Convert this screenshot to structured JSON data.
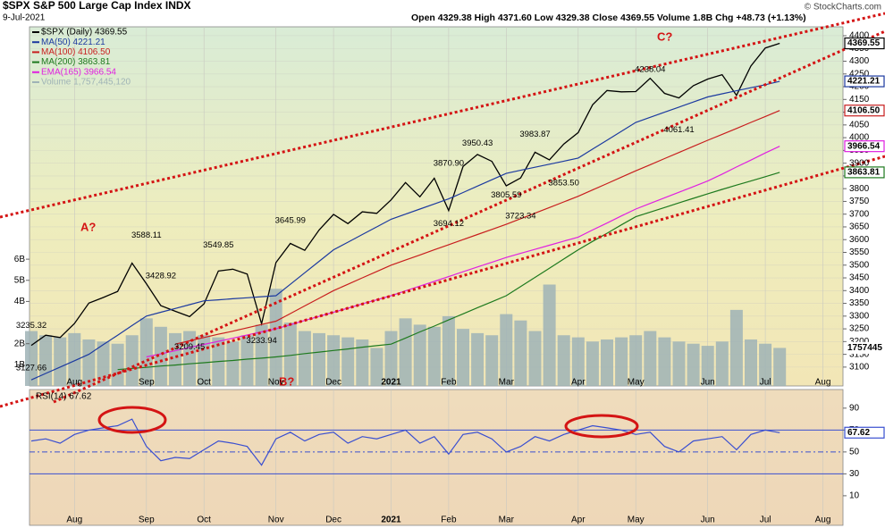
{
  "chart_data": [
    {
      "type": "line",
      "title": "$SPX S&P 500 Large Cap Index INDX",
      "date": "9-Jul-2021",
      "quote": "Open 4329.38 High 4371.60 Low 4329.38 Close 4369.55 Volume 1.8B Chg +48.73 (+1.13%)",
      "credit": "© StockCharts.com",
      "annotations": [
        "A?",
        "B?",
        "C?"
      ],
      "categories": [
        null,
        null,
        null,
        "Aug",
        null,
        null,
        null,
        null,
        "Sep",
        null,
        null,
        null,
        "Oct",
        null,
        null,
        null,
        null,
        "Nov",
        null,
        null,
        null,
        "Dec",
        null,
        null,
        null,
        "2021",
        null,
        null,
        null,
        "Feb",
        null,
        null,
        null,
        "Mar",
        null,
        null,
        null,
        null,
        "Apr",
        null,
        null,
        null,
        "May",
        null,
        null,
        null,
        null,
        "Jun",
        null,
        null,
        null,
        "Jul",
        null,
        null,
        null,
        "Aug",
        null
      ],
      "ylim": [
        3026,
        4435
      ],
      "yticks": [
        3100,
        3150,
        3200,
        3250,
        3300,
        3350,
        3400,
        3450,
        3500,
        3550,
        3600,
        3650,
        3700,
        3750,
        3800,
        3850,
        3900,
        3950,
        4000,
        4050,
        4100,
        4150,
        4200,
        4250,
        4300,
        4350,
        4400
      ],
      "grid": true,
      "series": [
        {
          "name": "$SPX (Daily) 4369.55",
          "color": "#000000",
          "tag": "4369.55",
          "values": [
            3185,
            3225,
            3216,
            3271,
            3351,
            3373,
            3397,
            3508,
            3427,
            3341,
            3319,
            3298,
            3348,
            3477,
            3484,
            3465,
            3270,
            3510,
            3585,
            3558,
            3638,
            3699,
            3663,
            3709,
            3703,
            3756,
            3824,
            3768,
            3841,
            3714,
            3887,
            3934,
            3907,
            3811,
            3842,
            3943,
            3913,
            3975,
            4020,
            4129,
            4185,
            4180,
            4181,
            4233,
            4174,
            4156,
            4204,
            4230,
            4247,
            4166,
            4281,
            4352,
            4370,
            null,
            null,
            null,
            null
          ]
        },
        {
          "name": "MA(50) 4221.21",
          "color": "#1c3aa0",
          "tag": "4221.21",
          "values": [
            3050,
            3075,
            3100,
            3125,
            3150,
            3188,
            3225,
            3263,
            3300,
            3315,
            3330,
            3345,
            3360,
            3364,
            3368,
            3372,
            3376,
            3380,
            3425,
            3470,
            3515,
            3560,
            3590,
            3620,
            3650,
            3680,
            3700,
            3720,
            3740,
            3760,
            3785,
            3810,
            3835,
            3860,
            3872,
            3884,
            3896,
            3908,
            3920,
            3955,
            3990,
            4025,
            4060,
            4080,
            4100,
            4120,
            4140,
            4160,
            4172,
            4184,
            4196,
            4208,
            4221,
            null,
            null,
            null,
            null
          ]
        },
        {
          "name": "MA(100) 4106.50",
          "color": "#c81e1e",
          "tag": "4106.50",
          "values": [
            null,
            null,
            null,
            null,
            null,
            null,
            null,
            null,
            null,
            null,
            3190,
            3203,
            3216,
            3229,
            3241,
            3254,
            3267,
            3280,
            3310,
            3340,
            3370,
            3400,
            3425,
            3450,
            3475,
            3500,
            3520,
            3540,
            3560,
            3580,
            3600,
            3620,
            3640,
            3660,
            3682,
            3704,
            3726,
            3748,
            3770,
            3795,
            3820,
            3845,
            3870,
            3894,
            3918,
            3942,
            3966,
            3990,
            4013,
            4036,
            4060,
            4083,
            4106.5,
            null,
            null,
            null,
            null
          ]
        },
        {
          "name": "MA(200) 3863.81",
          "color": "#1e7a1e",
          "tag": "3863.81",
          "values": [
            null,
            null,
            null,
            null,
            null,
            null,
            3090,
            3095,
            3099,
            3104,
            3108,
            3113,
            3117,
            3122,
            3126,
            3131,
            3135,
            3140,
            3146,
            3153,
            3159,
            3165,
            3171,
            3178,
            3184,
            3190,
            3214,
            3238,
            3261,
            3285,
            3309,
            3333,
            3356,
            3380,
            3416,
            3452,
            3488,
            3524,
            3560,
            3593,
            3625,
            3658,
            3690,
            3708,
            3726,
            3744,
            3762,
            3780,
            3797,
            3814,
            3830,
            3847,
            3864,
            null,
            null,
            null,
            null
          ]
        },
        {
          "name": "EMA(165) 3966.54",
          "color": "#e020e0",
          "tag": "3966.54",
          "values": [
            null,
            null,
            null,
            null,
            null,
            null,
            null,
            null,
            3140,
            3152,
            3164,
            3177,
            3189,
            3201,
            3213,
            3226,
            3238,
            3250,
            3266,
            3283,
            3299,
            3315,
            3331,
            3348,
            3364,
            3380,
            3399,
            3418,
            3436,
            3455,
            3474,
            3493,
            3511,
            3530,
            3546,
            3562,
            3578,
            3594,
            3610,
            3638,
            3665,
            3693,
            3720,
            3742,
            3764,
            3786,
            3808,
            3830,
            3857,
            3885,
            3912,
            3940,
            3966.5,
            null,
            null,
            null,
            null
          ]
        }
      ],
      "high_labels": [
        3235.32,
        null,
        null,
        null,
        null,
        null,
        null,
        null,
        3588.11,
        3428.92,
        null,
        null,
        null,
        3549.85,
        null,
        null,
        null,
        null,
        3645.99,
        null,
        null,
        null,
        null,
        null,
        null,
        null,
        null,
        null,
        null,
        {
          "value": 3870.9,
          "label": "3870.90"
        },
        null,
        3950.43,
        null,
        null,
        null,
        3983.87,
        null,
        null,
        null,
        null,
        null,
        null,
        null,
        4238.04,
        null,
        null,
        null,
        null,
        null,
        null,
        null,
        null,
        null,
        null,
        null,
        null,
        null
      ],
      "low_labels": [
        3127.66,
        null,
        null,
        null,
        null,
        null,
        null,
        null,
        null,
        null,
        null,
        3209.45,
        null,
        null,
        null,
        null,
        3233.94,
        null,
        null,
        null,
        null,
        null,
        null,
        null,
        null,
        null,
        null,
        null,
        null,
        3694.12,
        null,
        null,
        null,
        3805.59,
        3723.34,
        null,
        null,
        {
          "value": 3853.5,
          "label": "3853.50"
        },
        null,
        null,
        null,
        null,
        null,
        null,
        null,
        4061.41,
        null,
        null,
        null,
        null,
        null,
        null,
        null,
        null,
        null,
        null,
        null
      ],
      "volume": {
        "name": "Volume 1,757,445,120",
        "color": "#9fb3b6",
        "tag": "1757445",
        "ylim": [
          0,
          17
        ],
        "yticks": [
          {
            "value": 1,
            "label": "1B"
          },
          {
            "value": 2,
            "label": "2B"
          },
          {
            "value": 4,
            "label": "4B"
          },
          {
            "value": 5,
            "label": "5B"
          },
          {
            "value": 6,
            "label": "6B"
          }
        ],
        "values": [
          2.6,
          2.4,
          2.3,
          2.5,
          2.2,
          2.1,
          2.0,
          2.4,
          3.2,
          2.8,
          2.5,
          2.6,
          2.4,
          2.3,
          2.1,
          2.4,
          2.9,
          4.6,
          3.0,
          2.6,
          2.5,
          2.4,
          2.3,
          2.2,
          1.8,
          2.6,
          3.2,
          2.9,
          2.8,
          3.3,
          2.7,
          2.5,
          2.4,
          3.4,
          3.1,
          2.6,
          4.8,
          2.4,
          2.3,
          2.1,
          2.2,
          2.3,
          2.4,
          2.6,
          2.3,
          2.1,
          2.0,
          1.9,
          2.1,
          3.6,
          2.2,
          2.0,
          1.8,
          null,
          null,
          null,
          null
        ]
      }
    },
    {
      "type": "line",
      "title": "RSI(14) 67.62",
      "ylim": [
        -17,
        107
      ],
      "yticks": [
        10,
        30,
        50,
        70,
        90
      ],
      "levels": [
        30,
        50,
        70
      ],
      "series": [
        {
          "name": "RSI(14)",
          "color": "#3a4fd0",
          "tag": "67.62",
          "values": [
            60,
            62,
            58,
            66,
            70,
            72,
            74,
            80,
            55,
            42,
            45,
            44,
            52,
            60,
            58,
            55,
            38,
            62,
            68,
            60,
            66,
            68,
            58,
            64,
            62,
            66,
            70,
            58,
            64,
            48,
            66,
            68,
            62,
            50,
            55,
            64,
            60,
            66,
            70,
            74,
            72,
            70,
            66,
            68,
            55,
            50,
            60,
            62,
            64,
            52,
            66,
            70,
            67.62,
            null,
            null,
            null,
            null
          ]
        }
      ]
    }
  ]
}
